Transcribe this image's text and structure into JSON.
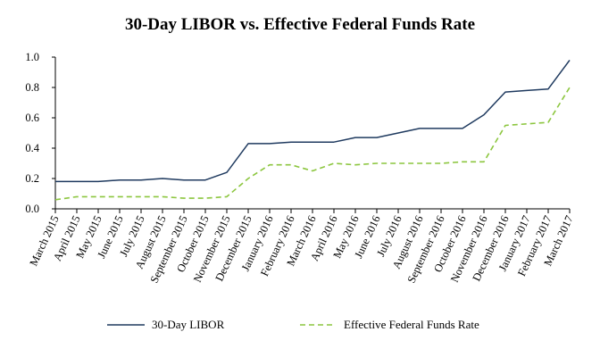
{
  "chart_data": {
    "type": "line",
    "title": "30-Day LIBOR vs. Effective Federal Funds Rate",
    "xlabel": "",
    "ylabel": "",
    "ylim": [
      0,
      1.0
    ],
    "yticks": [
      "0.0",
      "0.2",
      "0.4",
      "0.6",
      "0.8",
      "1.0"
    ],
    "grid": false,
    "legend_position": "bottom",
    "categories": [
      "March 2015",
      "April 2015",
      "May 2015",
      "June 2015",
      "July 2015",
      "August 2015",
      "September 2015",
      "October 2015",
      "November 2015",
      "December 2015",
      "January 2016",
      "February 2016",
      "March 2016",
      "April 2016",
      "May 2016",
      "June 2016",
      "July 2016",
      "August 2016",
      "September 2016",
      "October 2016",
      "November 2016",
      "December 2016",
      "January 2017",
      "February 2017",
      "March 2017"
    ],
    "series": [
      {
        "name": "30-Day LIBOR",
        "color": "#1f3a5f",
        "style": "solid",
        "values": [
          0.18,
          0.18,
          0.18,
          0.19,
          0.19,
          0.2,
          0.19,
          0.19,
          0.24,
          0.43,
          0.43,
          0.44,
          0.44,
          0.44,
          0.47,
          0.47,
          0.5,
          0.53,
          0.53,
          0.53,
          0.62,
          0.77,
          0.78,
          0.79,
          0.98
        ]
      },
      {
        "name": "Effective Federal Funds Rate",
        "color": "#8cc63f",
        "style": "dashed",
        "values": [
          0.06,
          0.08,
          0.08,
          0.08,
          0.08,
          0.08,
          0.07,
          0.07,
          0.08,
          0.2,
          0.29,
          0.29,
          0.25,
          0.3,
          0.29,
          0.3,
          0.3,
          0.3,
          0.3,
          0.31,
          0.31,
          0.55,
          0.56,
          0.57,
          0.8
        ]
      }
    ]
  }
}
